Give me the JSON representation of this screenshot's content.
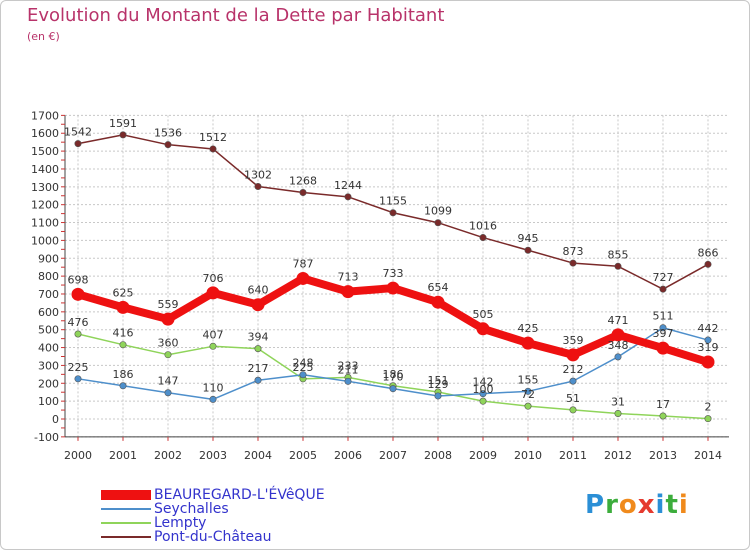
{
  "title": "Evolution du Montant de la Dette par Habitant",
  "subtitle": "(en €)",
  "logo": [
    "P",
    "r",
    "o",
    "x",
    "i",
    "t",
    "i"
  ],
  "logo_colors": [
    "#2b8fd6",
    "#3cad3c",
    "#f08a1c",
    "#e53a2f",
    "#2b8fd6",
    "#3cad3c",
    "#f08a1c"
  ],
  "chart_data": {
    "type": "line",
    "x": [
      "2000",
      "2001",
      "2002",
      "2003",
      "2004",
      "2005",
      "2006",
      "2007",
      "2008",
      "2009",
      "2010",
      "2011",
      "2012",
      "2013",
      "2014"
    ],
    "ylim": [
      -100,
      1700
    ],
    "yticks": [
      "-100",
      "0",
      "100",
      "200",
      "300",
      "400",
      "500",
      "600",
      "700",
      "800",
      "900",
      "1000",
      "1100",
      "1200",
      "1300",
      "1400",
      "1500",
      "1600",
      "1700"
    ],
    "grid": true,
    "legend_position": "bottom-left",
    "series": [
      {
        "name": "Pont-du-Château",
        "color": "#7a2a2a",
        "values": [
          1542,
          1591,
          1536,
          1512,
          1302,
          1268,
          1244,
          1155,
          1099,
          1016,
          945,
          873,
          855,
          727,
          866
        ],
        "labels": [
          "1542",
          "1591",
          "1536",
          "1512",
          "1302",
          "1268",
          "1244",
          "1155",
          "1099",
          "1016",
          "945",
          "873",
          "855",
          "727",
          "866"
        ]
      },
      {
        "name": "Lempty",
        "color": "#8fd45a",
        "values": [
          476,
          416,
          360,
          407,
          394,
          225,
          233,
          186,
          151,
          100,
          72,
          51,
          31,
          17,
          2
        ],
        "labels": [
          "476",
          "416",
          "360",
          "407",
          "394",
          "225",
          "233",
          "186",
          "151",
          "100",
          "72",
          "51",
          "31",
          "17",
          "2"
        ]
      },
      {
        "name": "Seychalles",
        "color": "#4e8fcb",
        "values": [
          225,
          186,
          147,
          110,
          217,
          248,
          211,
          170,
          129,
          142,
          155,
          212,
          348,
          511,
          442
        ],
        "labels": [
          "225",
          "186",
          "147",
          "110",
          "217",
          "248",
          "211",
          "170",
          "129",
          "142",
          "155",
          "212",
          "348",
          "511",
          "442"
        ]
      },
      {
        "name": "BEAUREGARD-L'ÉVêQUE",
        "color": "#ee1111",
        "values": [
          698,
          625,
          559,
          706,
          640,
          787,
          713,
          733,
          654,
          505,
          425,
          359,
          471,
          397,
          319
        ],
        "labels": [
          "698",
          "625",
          "559",
          "706",
          "640",
          "787",
          "713",
          "733",
          "654",
          "505",
          "425",
          "359",
          "471",
          "397",
          "319"
        ]
      }
    ]
  },
  "legend": [
    {
      "label": "BEAUREGARD-L'ÉVêQUE",
      "color": "#ee1111",
      "width": 10
    },
    {
      "label": "Seychalles",
      "color": "#4e8fcb",
      "width": 2
    },
    {
      "label": "Lempty",
      "color": "#8fd45a",
      "width": 2
    },
    {
      "label": "Pont-du-Château",
      "color": "#7a2a2a",
      "width": 2
    }
  ]
}
